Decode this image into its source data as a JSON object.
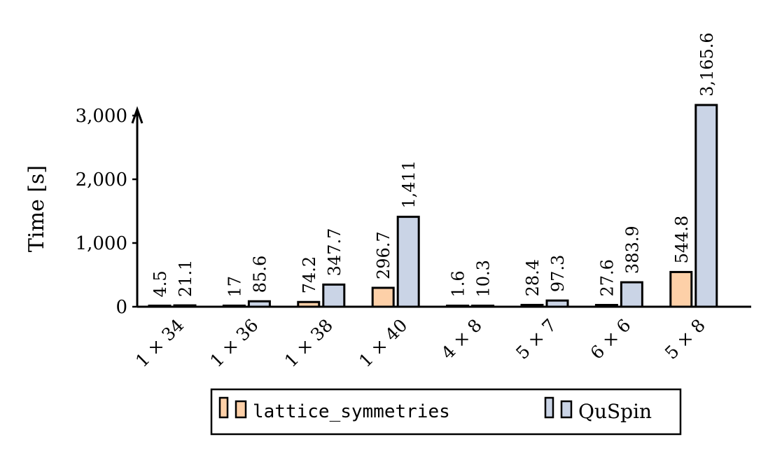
{
  "chart_data": {
    "type": "bar",
    "title": "",
    "xlabel": "",
    "ylabel": "Time [s]",
    "ylim": [
      0,
      3000
    ],
    "yticks": [
      0,
      1000,
      2000,
      3000
    ],
    "ytick_labels": [
      "0",
      "1,000",
      "2,000",
      "3,000"
    ],
    "grid": false,
    "legend_position": "bottom-center",
    "categories": [
      "1 × 34",
      "1 × 36",
      "1 × 38",
      "1 × 40",
      "4 × 8",
      "5 × 7",
      "6 × 6",
      "5 × 8"
    ],
    "series": [
      {
        "name": "lattice_symmetries",
        "color": "#fdd0a8",
        "values": [
          4.5,
          17,
          74.2,
          296.7,
          1.6,
          28.4,
          27.6,
          544.8
        ],
        "labels": [
          "4.5",
          "17",
          "74.2",
          "296.7",
          "1.6",
          "28.4",
          "27.6",
          "544.8"
        ]
      },
      {
        "name": "QuSpin",
        "color": "#cad4e6",
        "values": [
          21.1,
          85.6,
          347.7,
          1411,
          10.3,
          97.3,
          383.9,
          3165.6
        ],
        "labels": [
          "21.1",
          "85.6",
          "347.7",
          "1,411",
          "10.3",
          "97.3",
          "383.9",
          "3,165.6"
        ]
      }
    ]
  }
}
